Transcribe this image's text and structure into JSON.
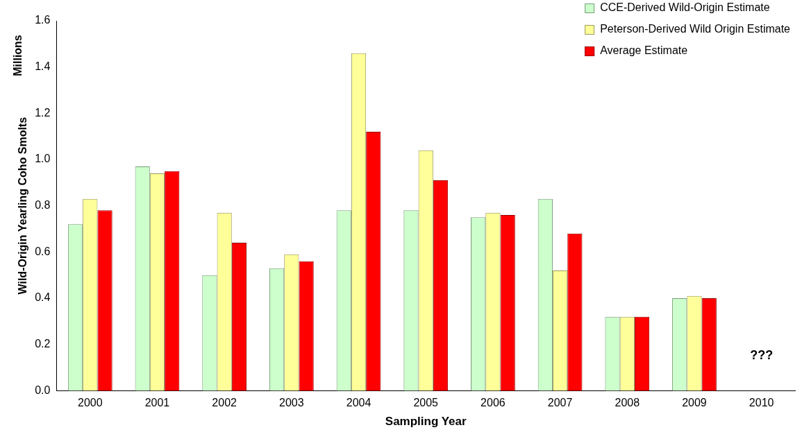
{
  "chart_data": {
    "type": "bar",
    "xlabel": "Sampling Year",
    "ylabel": "Wild-Origin Yearling Coho Smolts",
    "categories": [
      "2000",
      "2001",
      "2002",
      "2003",
      "2004",
      "2005",
      "2006",
      "2007",
      "2008",
      "2009",
      "2010"
    ],
    "series": [
      {
        "name": "CCE-Derived Wild-Origin Estimate",
        "color": "#ccffcc",
        "values": [
          0.72,
          0.97,
          0.5,
          0.53,
          0.78,
          0.78,
          0.75,
          0.83,
          0.32,
          0.4,
          null
        ]
      },
      {
        "name": "Peterson-Derived Wild Origin Estimate",
        "color": "#ffff99",
        "values": [
          0.83,
          0.94,
          0.77,
          0.59,
          1.46,
          1.04,
          0.77,
          0.52,
          0.32,
          0.41,
          null
        ]
      },
      {
        "name": "Average Estimate",
        "color": "#ff0000",
        "values": [
          0.78,
          0.95,
          0.64,
          0.56,
          1.12,
          0.91,
          0.76,
          0.68,
          0.32,
          0.4,
          null
        ]
      }
    ],
    "ylim": [
      0,
      1.6
    ],
    "yticks": [
      {
        "value": 0,
        "label": "0.0"
      },
      {
        "value": 0.2,
        "label": "0.2"
      },
      {
        "value": 0.4,
        "label": "0.4"
      },
      {
        "value": 0.6,
        "label": "0.6"
      },
      {
        "value": 0.8,
        "label": "0.8"
      },
      {
        "value": 1,
        "label": "1.0"
      },
      {
        "value": 1.2,
        "label": "1.2"
      },
      {
        "value": 1.4,
        "label": "1.4"
      },
      {
        "value": 1.6,
        "label": "1.6"
      }
    ],
    "grid": false,
    "legend": "top right",
    "annotations": [
      "Millions",
      "???"
    ]
  }
}
